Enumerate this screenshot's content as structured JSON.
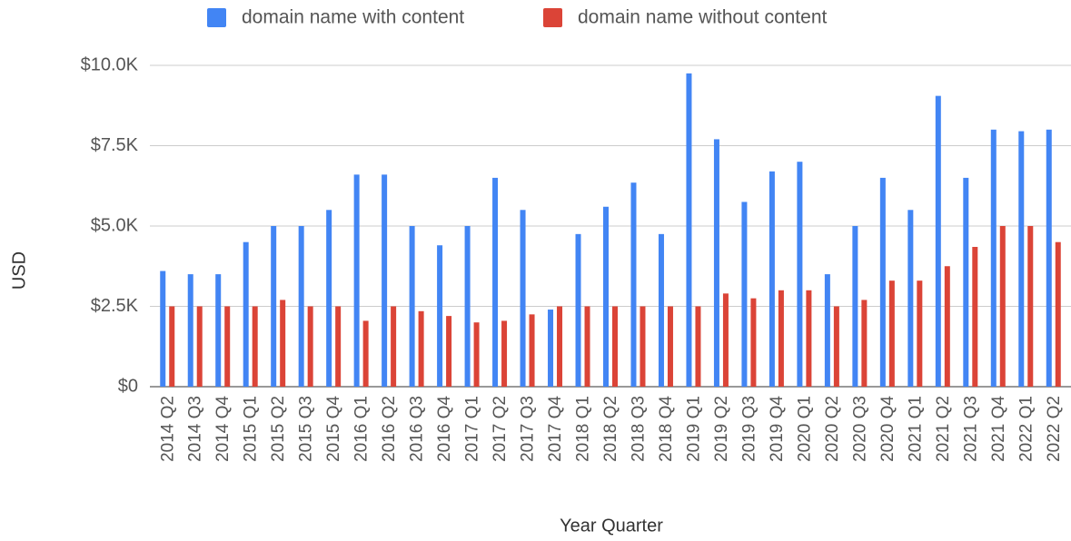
{
  "chart_data": {
    "type": "bar",
    "x_label": "Year Quarter",
    "y_label": "USD",
    "categories": [
      "2014 Q2",
      "2014 Q3",
      "2014 Q4",
      "2015 Q1",
      "2015 Q2",
      "2015 Q3",
      "2015 Q4",
      "2016 Q1",
      "2016 Q2",
      "2016 Q3",
      "2016 Q4",
      "2017 Q1",
      "2017 Q2",
      "2017 Q3",
      "2017 Q4",
      "2018 Q1",
      "2018 Q2",
      "2018 Q3",
      "2018 Q4",
      "2019 Q1",
      "2019 Q2",
      "2019 Q3",
      "2019 Q4",
      "2020 Q1",
      "2020 Q2",
      "2020 Q3",
      "2020 Q4",
      "2021 Q1",
      "2021 Q2",
      "2021 Q3",
      "2021 Q4",
      "2022 Q1",
      "2022 Q2"
    ],
    "series": [
      {
        "name": "domain name with content",
        "color": "#4285f4",
        "values": [
          3600,
          3500,
          3500,
          4500,
          5000,
          5000,
          5500,
          6600,
          6600,
          5000,
          4400,
          5000,
          6500,
          5500,
          2400,
          4750,
          5600,
          6350,
          4750,
          9750,
          7700,
          5750,
          6700,
          7000,
          3500,
          5000,
          6500,
          5500,
          9050,
          6500,
          8000,
          7950,
          8000
        ]
      },
      {
        "name": "domain name without content",
        "color": "#db4437",
        "values": [
          2500,
          2500,
          2500,
          2500,
          2700,
          2500,
          2500,
          2050,
          2500,
          2350,
          2200,
          2000,
          2050,
          2250,
          2500,
          2500,
          2500,
          2500,
          2500,
          2500,
          2900,
          2750,
          3000,
          3000,
          2500,
          2700,
          3300,
          3300,
          3750,
          4350,
          5000,
          5000,
          4500
        ]
      }
    ],
    "ylim": [
      0,
      10000
    ],
    "yticks": [
      {
        "value": 0,
        "label": "$0"
      },
      {
        "value": 2500,
        "label": "$2.5K"
      },
      {
        "value": 5000,
        "label": "$5.0K"
      },
      {
        "value": 7500,
        "label": "$7.5K"
      },
      {
        "value": 10000,
        "label": "$10.0K"
      }
    ],
    "grid": true,
    "legend": "top"
  }
}
